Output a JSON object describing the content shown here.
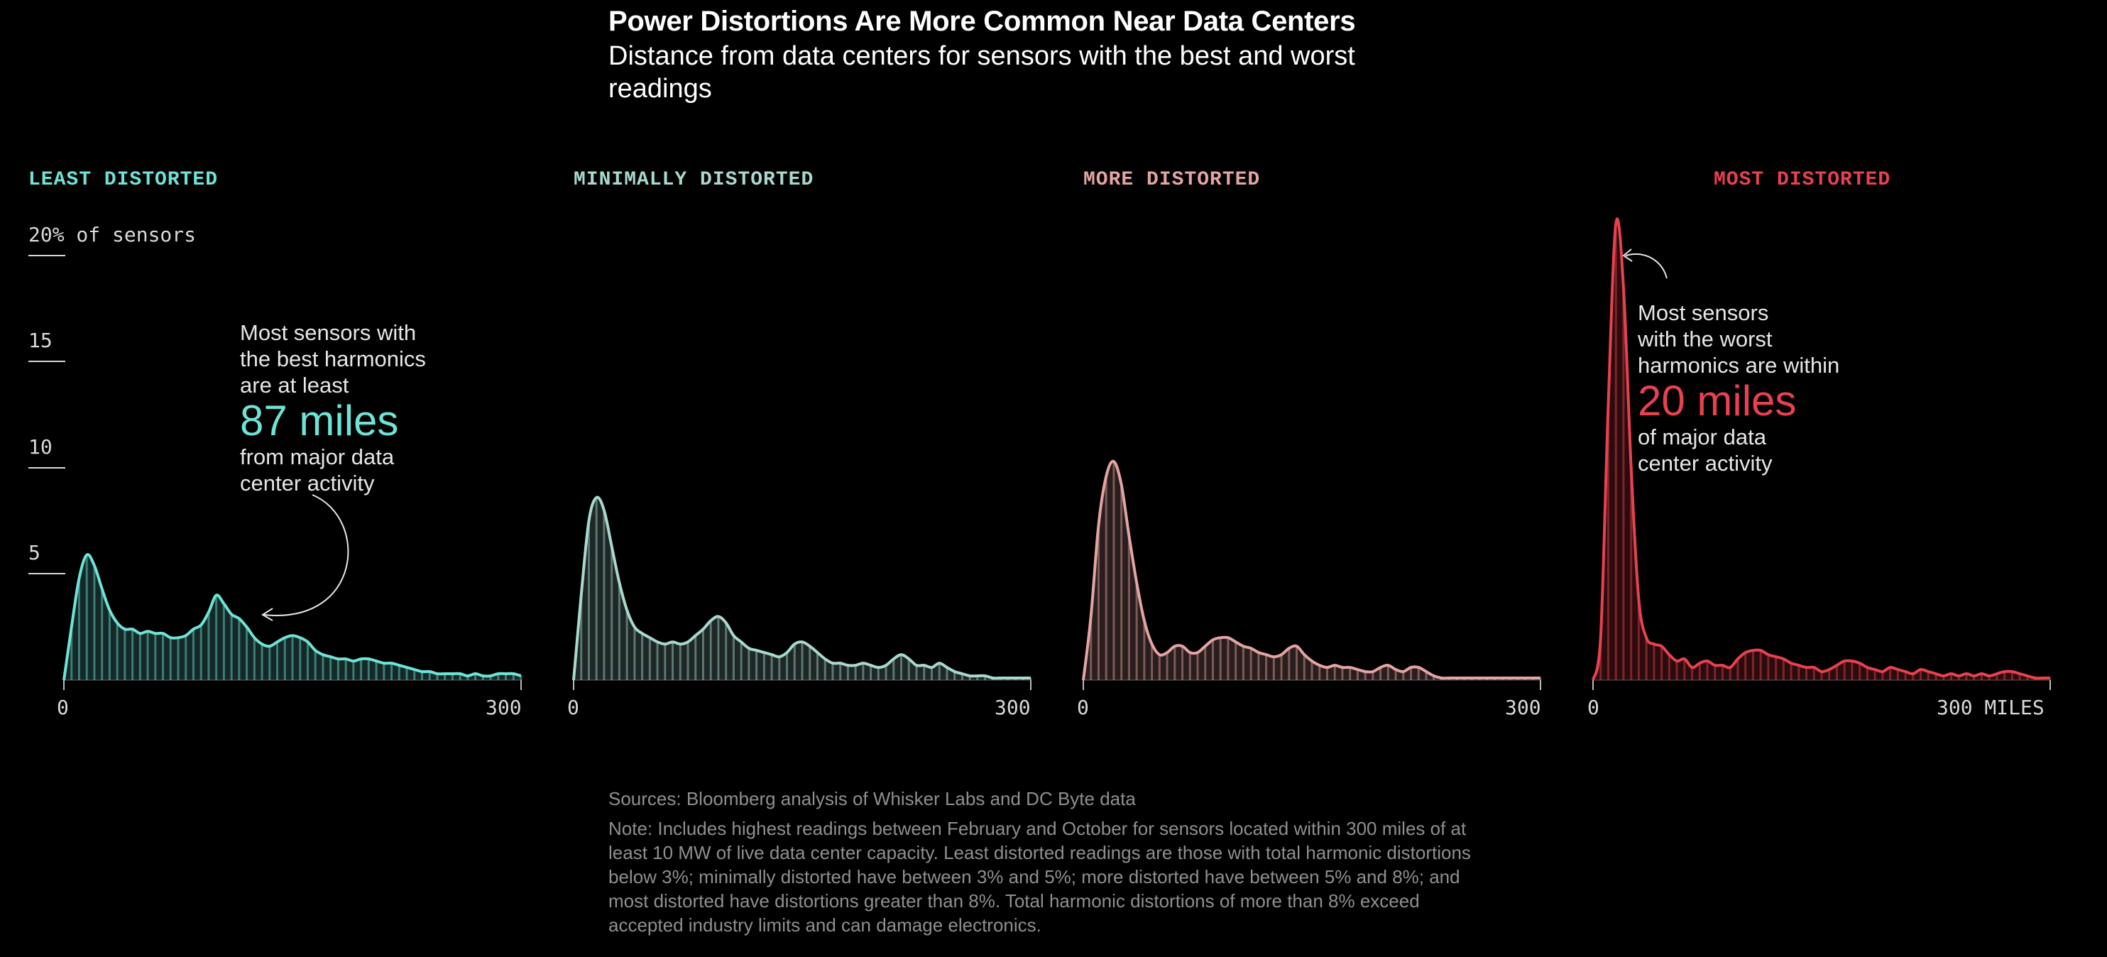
{
  "header": {
    "title": "Power Distortions Are More Common Near Data Centers",
    "subtitle": "Distance from data centers for sensors with the best and worst readings"
  },
  "axis": {
    "y_ticks": [
      "20% of sensors",
      "15",
      "10",
      "5"
    ],
    "y_unit": "% of sensors"
  },
  "annotations": {
    "least": {
      "line1": "Most sensors with",
      "line2": "the best harmonics",
      "line3": "are at least",
      "big": "87 miles",
      "line4": "from major data",
      "line5": "center activity"
    },
    "most": {
      "line1": "Most sensors",
      "line2": "with the worst",
      "line3": "harmonics are within",
      "big": "20 miles",
      "line4": "of major data",
      "line5": "center activity"
    }
  },
  "colors": {
    "least": "#6fe3d6",
    "minimally": "#a9d8cf",
    "more": "#e3a5a3",
    "most": "#e8414f"
  },
  "chart_data": [
    {
      "type": "area",
      "title": "LEAST DISTORTED",
      "color": "#6fe3d6",
      "xlabel": "miles",
      "ylabel": "% of sensors",
      "xlim": [
        0,
        300
      ],
      "ylim": [
        0,
        20
      ],
      "x_tick_labels": [
        "0",
        "300"
      ],
      "x": [
        0,
        5,
        10,
        15,
        20,
        25,
        30,
        35,
        40,
        45,
        50,
        55,
        60,
        65,
        70,
        75,
        80,
        85,
        90,
        95,
        100,
        105,
        110,
        115,
        120,
        125,
        130,
        135,
        140,
        145,
        150,
        155,
        160,
        165,
        170,
        175,
        180,
        185,
        190,
        195,
        200,
        205,
        210,
        215,
        220,
        225,
        230,
        235,
        240,
        245,
        250,
        255,
        260,
        265,
        270,
        275,
        280,
        285,
        290,
        295,
        300
      ],
      "values": [
        0,
        2.5,
        4.8,
        5.9,
        5.4,
        4.3,
        3.3,
        2.7,
        2.4,
        2.4,
        2.2,
        2.3,
        2.2,
        2.2,
        2.0,
        2.0,
        2.1,
        2.4,
        2.6,
        3.2,
        4.0,
        3.6,
        3.1,
        2.9,
        2.5,
        2.0,
        1.7,
        1.6,
        1.8,
        2.0,
        2.1,
        2.0,
        1.8,
        1.4,
        1.2,
        1.1,
        1.0,
        1.0,
        0.9,
        1.0,
        1.0,
        0.9,
        0.8,
        0.8,
        0.7,
        0.6,
        0.5,
        0.4,
        0.4,
        0.3,
        0.3,
        0.3,
        0.3,
        0.2,
        0.3,
        0.2,
        0.2,
        0.3,
        0.3,
        0.3,
        0.2
      ]
    },
    {
      "type": "area",
      "title": "MINIMALLY DISTORTED",
      "color": "#a9d8cf",
      "xlabel": "miles",
      "ylabel": "% of sensors",
      "xlim": [
        0,
        300
      ],
      "ylim": [
        0,
        20
      ],
      "x_tick_labels": [
        "0",
        "300"
      ],
      "x": [
        0,
        5,
        10,
        15,
        20,
        25,
        30,
        35,
        40,
        45,
        50,
        55,
        60,
        65,
        70,
        75,
        80,
        85,
        90,
        95,
        100,
        105,
        110,
        115,
        120,
        125,
        130,
        135,
        140,
        145,
        150,
        155,
        160,
        165,
        170,
        175,
        180,
        185,
        190,
        195,
        200,
        205,
        210,
        215,
        220,
        225,
        230,
        235,
        240,
        245,
        250,
        255,
        260,
        265,
        270,
        275,
        280,
        285,
        290,
        295,
        300
      ],
      "values": [
        0,
        4.0,
        7.5,
        8.6,
        8.0,
        6.3,
        4.6,
        3.3,
        2.5,
        2.2,
        2.0,
        1.8,
        1.7,
        1.8,
        1.7,
        1.8,
        2.1,
        2.4,
        2.8,
        3.0,
        2.7,
        2.1,
        1.8,
        1.5,
        1.4,
        1.3,
        1.2,
        1.1,
        1.3,
        1.7,
        1.8,
        1.6,
        1.3,
        1.0,
        0.8,
        0.8,
        0.7,
        0.7,
        0.8,
        0.7,
        0.6,
        0.7,
        1.0,
        1.2,
        1.0,
        0.7,
        0.7,
        0.6,
        0.8,
        0.6,
        0.4,
        0.3,
        0.2,
        0.2,
        0.2,
        0.1,
        0.1,
        0.1,
        0.1,
        0.1,
        0.1
      ]
    },
    {
      "type": "area",
      "title": "MORE DISTORTED",
      "color": "#e3a5a3",
      "xlabel": "miles",
      "ylabel": "% of sensors",
      "xlim": [
        0,
        300
      ],
      "ylim": [
        0,
        20
      ],
      "x_tick_labels": [
        "0",
        "300"
      ],
      "x": [
        0,
        5,
        10,
        15,
        20,
        25,
        30,
        35,
        40,
        45,
        50,
        55,
        60,
        65,
        70,
        75,
        80,
        85,
        90,
        95,
        100,
        105,
        110,
        115,
        120,
        125,
        130,
        135,
        140,
        145,
        150,
        155,
        160,
        165,
        170,
        175,
        180,
        185,
        190,
        195,
        200,
        205,
        210,
        215,
        220,
        225,
        230,
        235,
        240,
        245,
        250,
        255,
        260,
        265,
        270,
        275,
        280,
        285,
        290,
        295,
        300
      ],
      "values": [
        0,
        3.0,
        7.3,
        9.6,
        10.3,
        9.2,
        6.8,
        4.6,
        2.8,
        1.7,
        1.2,
        1.3,
        1.6,
        1.6,
        1.3,
        1.3,
        1.6,
        1.9,
        2.0,
        2.0,
        1.8,
        1.6,
        1.5,
        1.3,
        1.2,
        1.1,
        1.2,
        1.5,
        1.6,
        1.2,
        0.9,
        0.7,
        0.6,
        0.7,
        0.6,
        0.6,
        0.5,
        0.4,
        0.4,
        0.6,
        0.7,
        0.5,
        0.4,
        0.6,
        0.6,
        0.4,
        0.2,
        0.1,
        0.1,
        0.1,
        0.1,
        0.1,
        0.1,
        0.1,
        0.1,
        0.1,
        0.1,
        0.1,
        0.1,
        0.1,
        0.1
      ]
    },
    {
      "type": "area",
      "title": "MOST DISTORTED",
      "color": "#e8414f",
      "xlabel": "miles",
      "ylabel": "% of sensors",
      "xlim": [
        0,
        300
      ],
      "ylim": [
        0,
        20
      ],
      "x_tick_labels": [
        "0",
        "300 MILES"
      ],
      "x": [
        0,
        5,
        10,
        15,
        20,
        25,
        30,
        35,
        40,
        45,
        50,
        55,
        60,
        65,
        70,
        75,
        80,
        85,
        90,
        95,
        100,
        105,
        110,
        115,
        120,
        125,
        130,
        135,
        140,
        145,
        150,
        155,
        160,
        165,
        170,
        175,
        180,
        185,
        190,
        195,
        200,
        205,
        210,
        215,
        220,
        225,
        230,
        235,
        240,
        245,
        250,
        255,
        260,
        265,
        270,
        275,
        280,
        285,
        290,
        295,
        300
      ],
      "values": [
        0,
        2.0,
        13.0,
        21.5,
        18.5,
        10.0,
        3.8,
        2.0,
        1.7,
        1.6,
        1.2,
        0.9,
        1.0,
        0.6,
        0.8,
        0.9,
        0.7,
        0.7,
        0.6,
        1.0,
        1.3,
        1.4,
        1.4,
        1.2,
        1.1,
        1.0,
        0.8,
        0.7,
        0.6,
        0.6,
        0.4,
        0.5,
        0.7,
        0.9,
        0.9,
        0.8,
        0.6,
        0.5,
        0.4,
        0.6,
        0.5,
        0.4,
        0.3,
        0.5,
        0.4,
        0.3,
        0.2,
        0.3,
        0.2,
        0.3,
        0.2,
        0.3,
        0.2,
        0.3,
        0.4,
        0.4,
        0.3,
        0.2,
        0.1,
        0.1,
        0.1
      ]
    }
  ],
  "footer": {
    "sources": "Sources: Bloomberg analysis of Whisker Labs and DC Byte data",
    "note": "Note: Includes highest readings between February and October for sensors located within 300 miles of at least 10 MW of live data center capacity. Least distorted readings are those with total harmonic distortions below 3%; minimally distorted have between 3% and 5%; more distorted have between 5% and 8%; and most distorted have distortions greater than 8%. Total harmonic distortions of more than 8% exceed accepted industry limits and can damage electronics."
  }
}
